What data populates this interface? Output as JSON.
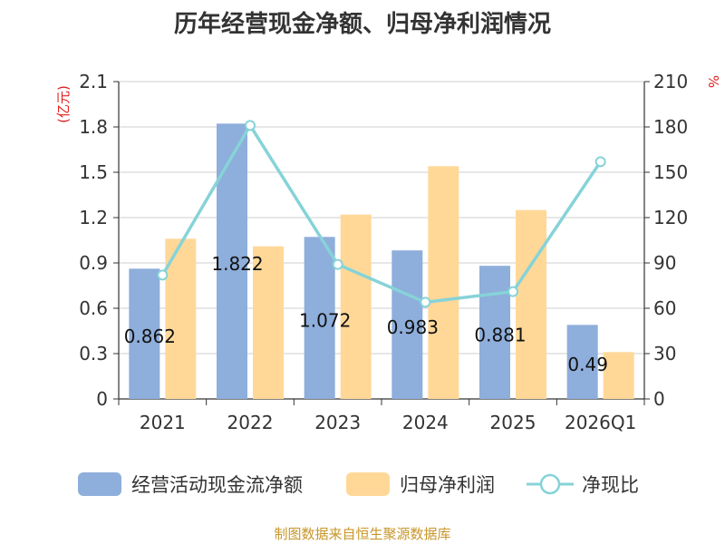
{
  "chart_data": {
    "type": "bar",
    "title": "历年经营现金净额、归母净利润情况",
    "categories": [
      "2021",
      "2022",
      "2023",
      "2024",
      "2025",
      "2026Q1"
    ],
    "series": [
      {
        "name": "经营活动现金流净额",
        "kind": "bar",
        "axis": "left",
        "color": "#8eaedb",
        "values": [
          0.862,
          1.822,
          1.072,
          0.983,
          0.881,
          0.49
        ],
        "labels": [
          "0.862",
          "1.822",
          "1.072",
          "0.983",
          "0.881",
          "0.49"
        ]
      },
      {
        "name": "归母净利润",
        "kind": "bar",
        "axis": "left",
        "color": "#ffd898",
        "values": [
          1.06,
          1.01,
          1.22,
          1.54,
          1.25,
          0.31
        ]
      },
      {
        "name": "净现比",
        "kind": "line",
        "axis": "right",
        "color": "#86d3d8",
        "values": [
          82,
          181,
          89,
          64,
          71,
          157
        ]
      }
    ],
    "y_left": {
      "label": "(亿元)",
      "ylim": [
        0,
        2.1
      ],
      "ticks": [
        "0",
        "0.3",
        "0.6",
        "0.9",
        "1.2",
        "1.5",
        "1.8",
        "2.1"
      ]
    },
    "y_right": {
      "label": "%",
      "ylim": [
        0,
        210
      ],
      "ticks": [
        "0",
        "30",
        "60",
        "90",
        "120",
        "150",
        "180",
        "210"
      ]
    },
    "grid": true,
    "legend": "bottom"
  },
  "source": "制图数据来自恒生聚源数据库"
}
